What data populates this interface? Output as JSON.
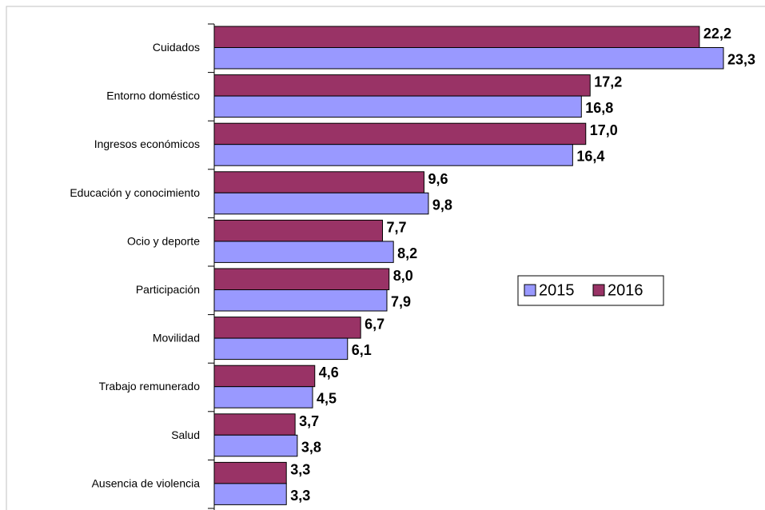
{
  "chart_data": {
    "type": "bar",
    "orientation": "horizontal",
    "categories": [
      "Cuidados",
      "Entorno doméstico",
      "Ingresos económicos",
      "Educación y conocimiento",
      "Ocio y deporte",
      "Participación",
      "Movilidad",
      "Trabajo remunerado",
      "Salud",
      "Ausencia de violencia"
    ],
    "series": [
      {
        "name": "2015",
        "color": "#9999ff",
        "values": [
          23.3,
          16.8,
          16.4,
          9.8,
          8.2,
          7.9,
          6.1,
          4.5,
          3.8,
          3.3
        ],
        "value_labels": [
          "23,3",
          "16,8",
          "16,4",
          "9,8",
          "8,2",
          "7,9",
          "6,1",
          "4,5",
          "3,8",
          "3,3"
        ]
      },
      {
        "name": "2016",
        "color": "#993366",
        "values": [
          22.2,
          17.2,
          17.0,
          9.6,
          7.7,
          8.0,
          6.7,
          4.6,
          3.7,
          3.3
        ],
        "value_labels": [
          "22,2",
          "17,2",
          "17,0",
          "9,6",
          "7,7",
          "8,0",
          "6,7",
          "4,6",
          "3,7",
          "3,3"
        ]
      }
    ],
    "legend": "right"
  }
}
